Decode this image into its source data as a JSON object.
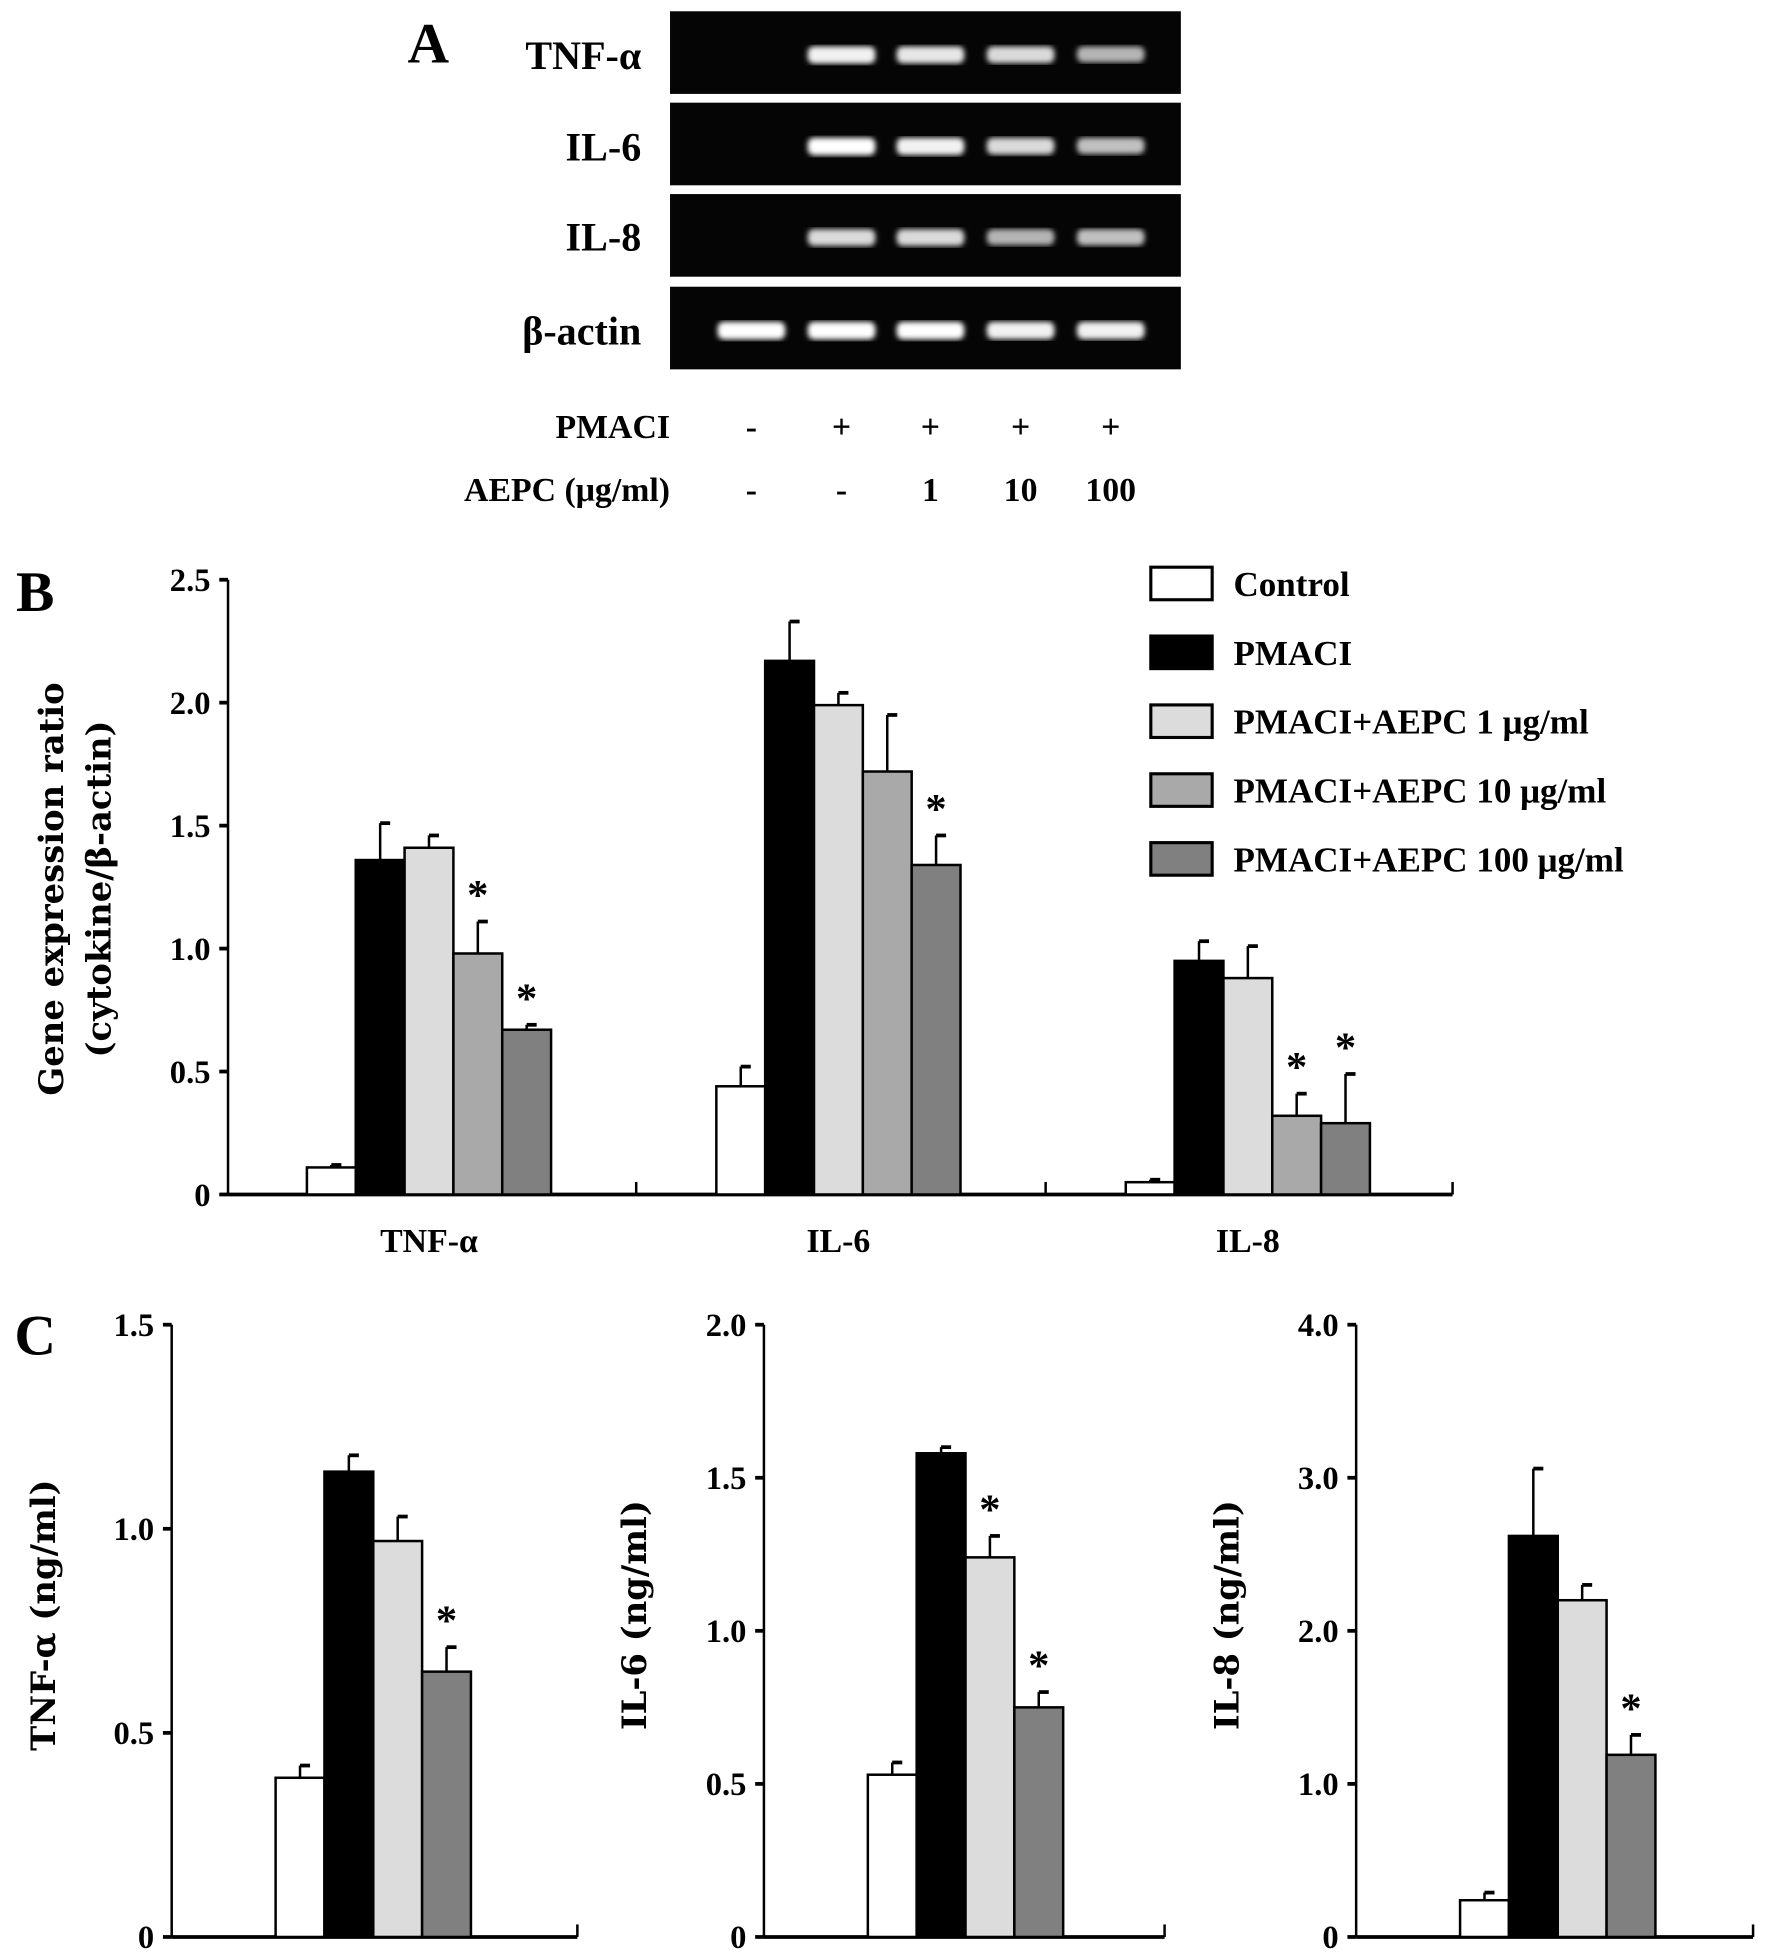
{
  "panel_a": {
    "label": "A",
    "genes": [
      "TNF-α",
      "IL-6",
      "IL-8",
      "β-actin"
    ],
    "treatments": [
      {
        "label": "PMACI",
        "values": [
          "-",
          "+",
          "+",
          "+",
          "+"
        ]
      },
      {
        "label": "AEPC (μg/ml)",
        "values": [
          "-",
          "-",
          "1",
          "10",
          "100"
        ]
      }
    ],
    "band_intensity": [
      [
        0,
        0.95,
        0.9,
        0.85,
        0.7
      ],
      [
        0,
        1,
        0.95,
        0.85,
        0.75
      ],
      [
        0,
        0.85,
        0.85,
        0.7,
        0.75
      ],
      [
        1,
        1,
        1,
        0.95,
        0.95
      ]
    ]
  },
  "colors": {
    "control": "#ffffff",
    "pmaci": "#000000",
    "aepc1": "#dcdcdc",
    "aepc10": "#a9a9a9",
    "aepc100": "#808080"
  },
  "chart_data": [
    {
      "panel": "B",
      "type": "bar",
      "ylabel_line1": "Gene expression ratio",
      "ylabel_line2": "(cytokine/β-actin)",
      "categories": [
        "TNF-α",
        "IL-6",
        "IL-8"
      ],
      "ylim": [
        0,
        2.5
      ],
      "yticks": [
        "0",
        "0.5",
        "1.0",
        "1.5",
        "2.0",
        "2.5"
      ],
      "ytick_values": [
        0,
        0.5,
        1.0,
        1.5,
        2.0,
        2.5
      ],
      "legend_position": "top-right",
      "series": [
        {
          "name": "Control",
          "key": "control",
          "values": [
            0.11,
            0.44,
            0.05
          ],
          "errors": [
            0.01,
            0.08,
            0.01
          ],
          "significant": [
            false,
            false,
            false
          ]
        },
        {
          "name": "PMACI",
          "key": "pmaci",
          "values": [
            1.36,
            2.17,
            0.95
          ],
          "errors": [
            0.15,
            0.16,
            0.08
          ],
          "significant": [
            false,
            false,
            false
          ]
        },
        {
          "name": "PMACI+AEPC 1 μg/ml",
          "key": "aepc1",
          "values": [
            1.41,
            1.99,
            0.88
          ],
          "errors": [
            0.05,
            0.05,
            0.13
          ],
          "significant": [
            false,
            false,
            false
          ]
        },
        {
          "name": "PMACI+AEPC 10 μg/ml",
          "key": "aepc10",
          "values": [
            0.98,
            1.72,
            0.32
          ],
          "errors": [
            0.13,
            0.23,
            0.09
          ],
          "significant": [
            true,
            false,
            true
          ]
        },
        {
          "name": "PMACI+AEPC 100 μg/ml",
          "key": "aepc100",
          "values": [
            0.67,
            1.34,
            0.29
          ],
          "errors": [
            0.02,
            0.12,
            0.2
          ],
          "significant": [
            true,
            true,
            true
          ]
        }
      ],
      "significance_mark": "*"
    },
    {
      "panel": "C",
      "type": "bar",
      "ylabel": "TNF-α (ng/ml)",
      "ylim": [
        0,
        1.5
      ],
      "yticks": [
        "0",
        "0.5",
        "1.0",
        "1.5"
      ],
      "ytick_values": [
        0,
        0.5,
        1.0,
        1.5
      ],
      "series_keys": [
        "control",
        "pmaci",
        "aepc1",
        "aepc100"
      ],
      "values": [
        0.39,
        1.14,
        0.97,
        0.65
      ],
      "errors": [
        0.03,
        0.04,
        0.06,
        0.06
      ],
      "significant": [
        false,
        false,
        false,
        true
      ],
      "significance_mark": "*"
    },
    {
      "type": "bar",
      "ylabel": "IL-6 (ng/ml)",
      "ylim": [
        0,
        2.0
      ],
      "yticks": [
        "0",
        "0.5",
        "1.0",
        "1.5",
        "2.0"
      ],
      "ytick_values": [
        0,
        0.5,
        1.0,
        1.5,
        2.0
      ],
      "series_keys": [
        "control",
        "pmaci",
        "aepc1",
        "aepc100"
      ],
      "values": [
        0.53,
        1.58,
        1.24,
        0.75
      ],
      "errors": [
        0.04,
        0.02,
        0.07,
        0.05
      ],
      "significant": [
        false,
        false,
        true,
        true
      ],
      "significance_mark": "*"
    },
    {
      "type": "bar",
      "ylabel": "IL-8 (ng/ml)",
      "ylim": [
        0,
        4.0
      ],
      "yticks": [
        "0",
        "1.0",
        "2.0",
        "3.0",
        "4.0"
      ],
      "ytick_values": [
        0,
        1.0,
        2.0,
        3.0,
        4.0
      ],
      "series_keys": [
        "control",
        "pmaci",
        "aepc1",
        "aepc100"
      ],
      "values": [
        0.24,
        2.62,
        2.2,
        1.19
      ],
      "errors": [
        0.05,
        0.44,
        0.1,
        0.13
      ],
      "significant": [
        false,
        false,
        false,
        true
      ],
      "significance_mark": "*"
    }
  ]
}
